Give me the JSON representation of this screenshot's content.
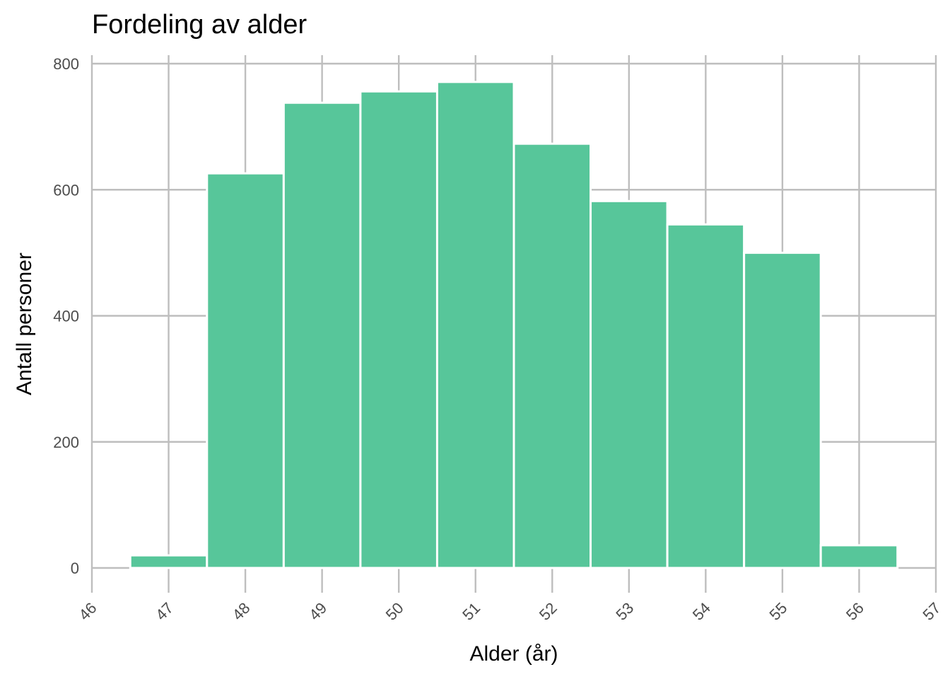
{
  "chart_data": {
    "type": "bar",
    "title": "Fordeling av alder",
    "xlabel": "Alder (år)",
    "ylabel": "Antall personer",
    "x_ticks": [
      46,
      47,
      48,
      49,
      50,
      51,
      52,
      53,
      54,
      55,
      56,
      57
    ],
    "y_ticks": [
      0,
      200,
      400,
      600,
      800
    ],
    "xlim": [
      46,
      57
    ],
    "ylim": [
      0,
      800
    ],
    "categories": [
      47,
      48,
      49,
      50,
      51,
      52,
      53,
      54,
      55,
      56
    ],
    "values": [
      20,
      626,
      738,
      756,
      771,
      673,
      582,
      545,
      500,
      36
    ],
    "bar_color": "#57c69a",
    "grid": true,
    "legend": "none"
  }
}
